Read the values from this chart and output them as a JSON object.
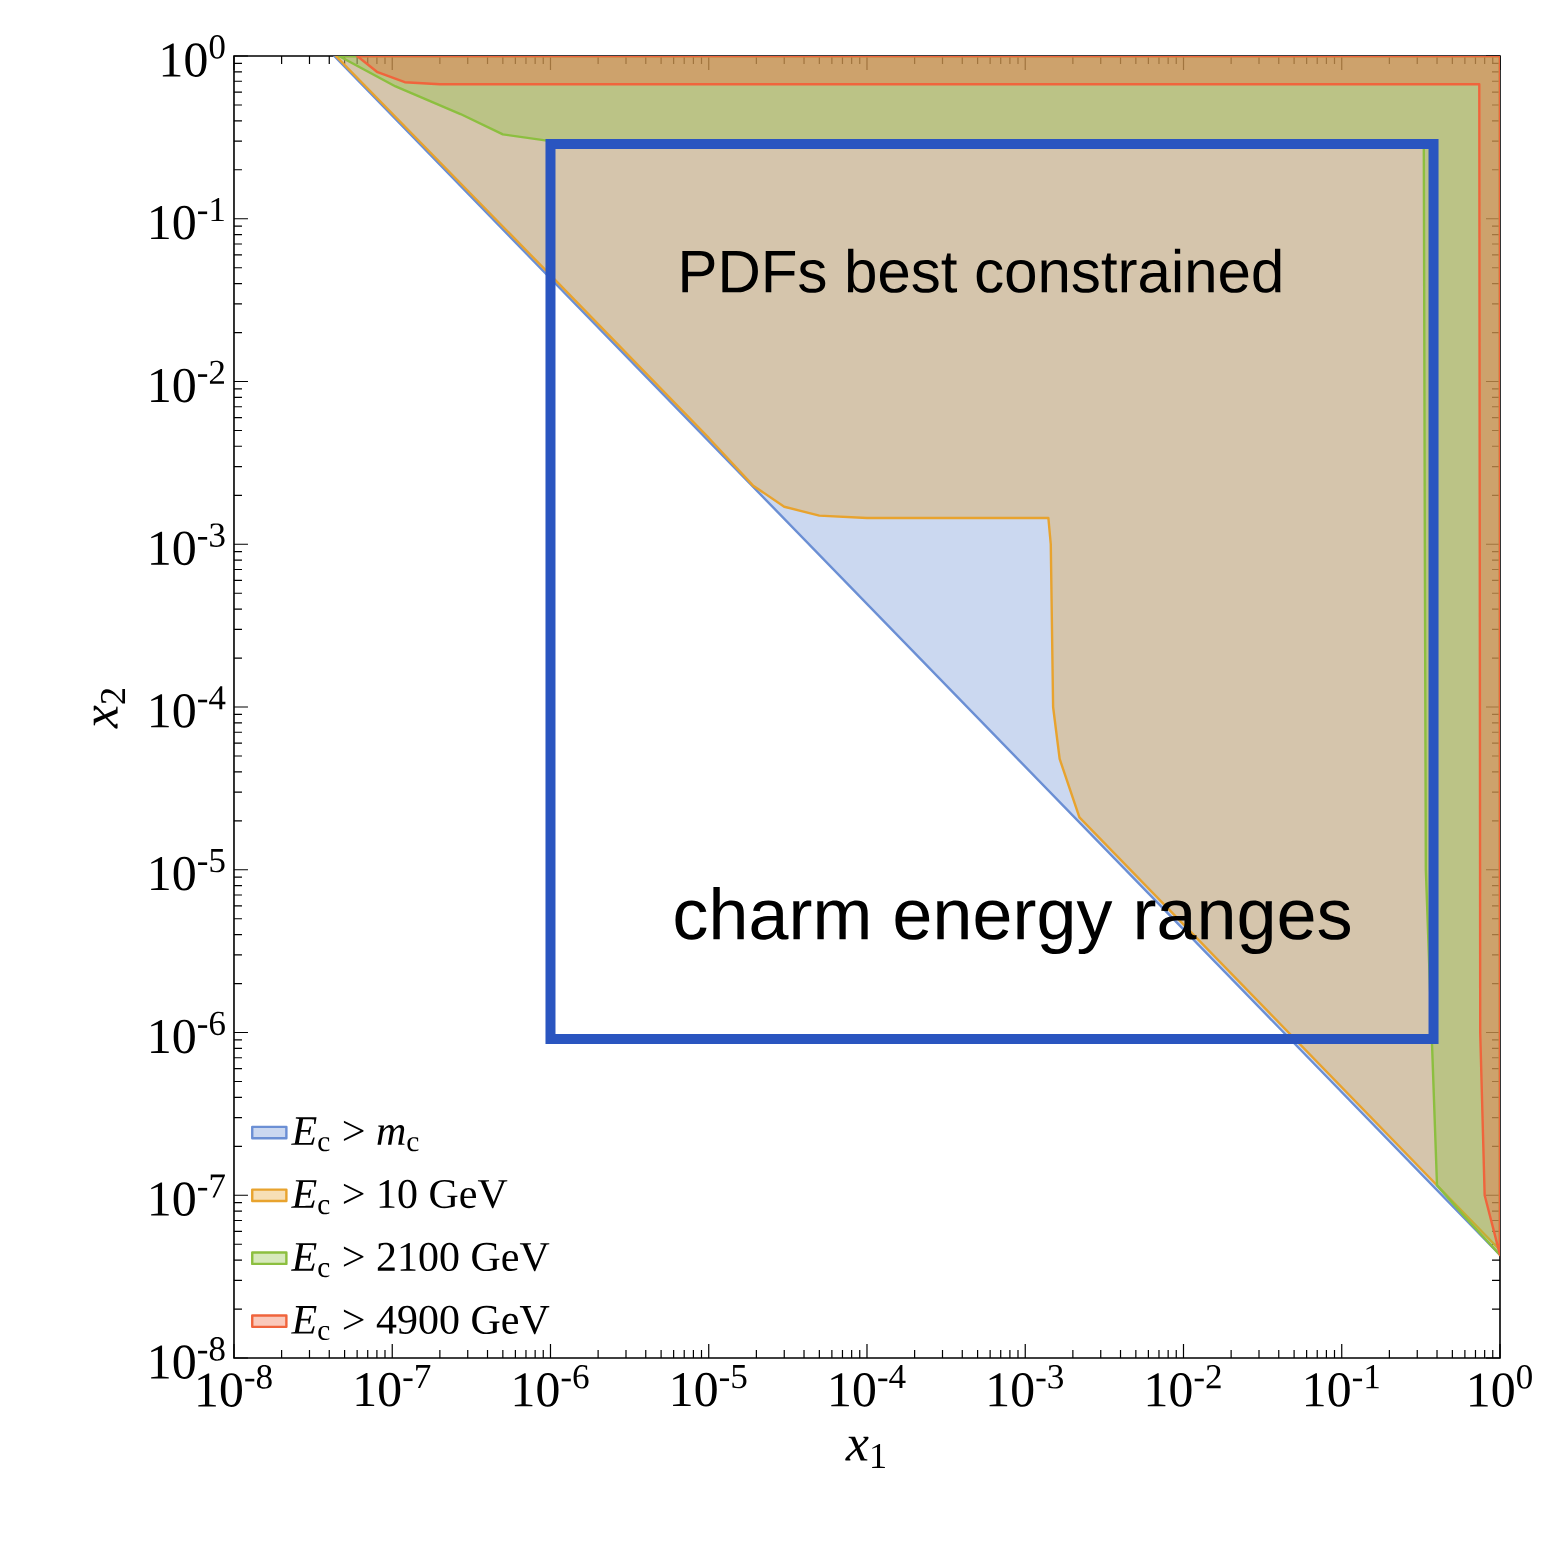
{
  "chart_data": {
    "type": "area",
    "xlabel": "*x*$_{1}$",
    "ylabel": "*x*$_{2}$",
    "xlim": [
      1e-08,
      1
    ],
    "ylim": [
      1e-08,
      1
    ],
    "log": "xy",
    "legend": "bottom left",
    "xticks": [
      {
        "value": 1e-08,
        "label": "10$^{-8}$"
      },
      {
        "value": 1e-07,
        "label": "10$^{-7}$"
      },
      {
        "value": 1e-06,
        "label": "10$^{-6}$"
      },
      {
        "value": 1e-05,
        "label": "10$^{-5}$"
      },
      {
        "value": 0.0001,
        "label": "10$^{-4}$"
      },
      {
        "value": 0.001,
        "label": "10$^{-3}$"
      },
      {
        "value": 0.01,
        "label": "10$^{-2}$"
      },
      {
        "value": 0.1,
        "label": "10$^{-1}$"
      },
      {
        "value": 1,
        "label": "10$^{0}$"
      }
    ],
    "yticks": [
      {
        "value": 1e-08,
        "label": "10$^{-8}$"
      },
      {
        "value": 1e-07,
        "label": "10$^{-7}$"
      },
      {
        "value": 1e-06,
        "label": "10$^{-6}$"
      },
      {
        "value": 1e-05,
        "label": "10$^{-5}$"
      },
      {
        "value": 0.0001,
        "label": "10$^{-4}$"
      },
      {
        "value": 0.001,
        "label": "10$^{-3}$"
      },
      {
        "value": 0.01,
        "label": "10$^{-2}$"
      },
      {
        "value": 0.1,
        "label": "10$^{-1}$"
      },
      {
        "value": 1,
        "label": "10$^{0}$"
      }
    ],
    "annotations": [
      "PDFs best constrained",
      "charm energy ranges"
    ],
    "series": [
      {
        "name": "*E*$_{c}$ > *m*$_{c}$",
        "color": "#6b8fd4",
        "x": [
          4.3e-08,
          1,
          1
        ],
        "values": [
          1,
          4.3e-08,
          1
        ]
      },
      {
        "name": "*E*$_{c}$ > 10 GeV",
        "color": "#e8a32e",
        "x": [
          4.4e-08,
          1e-06,
          1e-05,
          1.9e-05,
          3e-05,
          5e-05,
          0.0001,
          0.0014,
          0.00145,
          0.0015,
          0.00165,
          0.0022,
          1,
          1
        ],
        "values": [
          1,
          0.045,
          0.0045,
          0.0023,
          0.0017,
          0.0015,
          0.00145,
          0.00145,
          0.001,
          0.0001,
          4.8e-05,
          2.1e-05,
          4.6e-08,
          1
        ]
      },
      {
        "name": "*E*$_{c}$ > 2100 GeV",
        "color": "#8cbf3f",
        "x": [
          4.6e-08,
          1.05e-07,
          2.7e-07,
          5e-07,
          1e-06,
          0.33,
          0.335,
          0.34,
          0.4,
          0.59,
          1,
          1
        ],
        "values": [
          1,
          0.65,
          0.44,
          0.33,
          0.3,
          0.3,
          0.001,
          1e-05,
          1.15e-07,
          7.5e-08,
          4.3e-08,
          1
        ]
      },
      {
        "name": "*E*$_{c}$ > 4900 GeV",
        "color": "#f0643c",
        "x": [
          6e-08,
          8e-08,
          1.2e-07,
          2e-07,
          0.74,
          0.745,
          0.75,
          0.8,
          1,
          1
        ],
        "values": [
          1,
          0.8,
          0.69,
          0.67,
          0.67,
          0.001,
          1e-06,
          1e-07,
          4.3e-08,
          1
        ]
      }
    ]
  }
}
